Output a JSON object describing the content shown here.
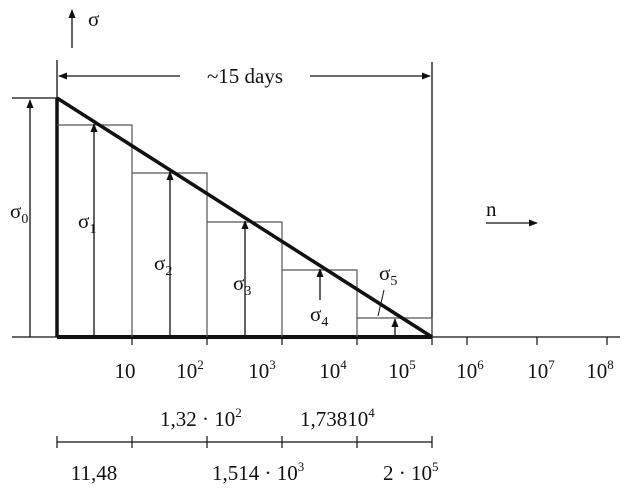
{
  "axis_vertical_label": "σ",
  "axis_horizontal_label": "n",
  "duration_label": "~15 days",
  "sigma_symbol": "σ",
  "sigma_labels": [
    {
      "sub": "0"
    },
    {
      "sub": "1"
    },
    {
      "sub": "2"
    },
    {
      "sub": "3"
    },
    {
      "sub": "4"
    },
    {
      "sub": "5"
    }
  ],
  "ticks": [
    {
      "base": "10",
      "exp": ""
    },
    {
      "base": "10",
      "exp": "2"
    },
    {
      "base": "10",
      "exp": "3"
    },
    {
      "base": "10",
      "exp": "4"
    },
    {
      "base": "10",
      "exp": "5"
    },
    {
      "base": "10",
      "exp": "6"
    },
    {
      "base": "10",
      "exp": "7"
    },
    {
      "base": "10",
      "exp": "8"
    }
  ],
  "boundary_values": [
    {
      "text": "1,32 · 10",
      "exp": "2"
    },
    {
      "text": "1,73810",
      "exp": "4"
    }
  ],
  "cumulative_values": [
    {
      "text": "11,48",
      "exp": ""
    },
    {
      "text": "1,514 · 10",
      "exp": "3"
    },
    {
      "text": "2 · 10",
      "exp": "5"
    }
  ],
  "colors": {
    "line": "#111111",
    "step": "#555555",
    "background": "#ffffff"
  }
}
